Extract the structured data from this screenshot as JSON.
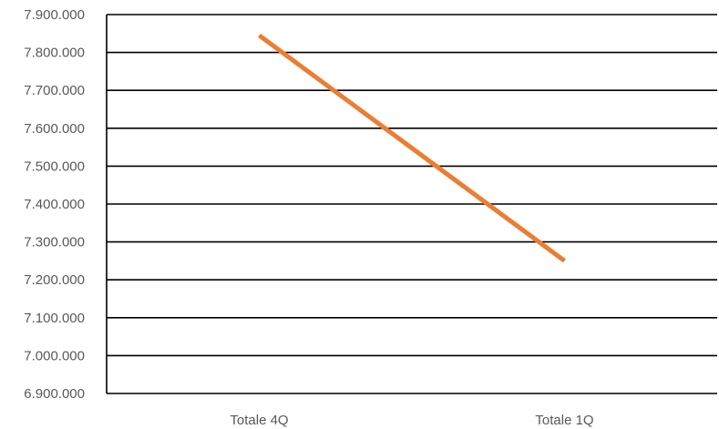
{
  "chart_data": {
    "type": "line",
    "title": "",
    "xlabel": "",
    "ylabel": "",
    "categories": [
      "Totale 4Q",
      "Totale 1Q"
    ],
    "series": [
      {
        "values": [
          7845000,
          7250000
        ],
        "color": "#ED7D31"
      }
    ],
    "ylim": [
      6900000,
      7900000
    ],
    "y_ticks": [
      {
        "value": 7900000,
        "label": "7.900.000"
      },
      {
        "value": 7800000,
        "label": "7.800.000"
      },
      {
        "value": 7700000,
        "label": "7.700.000"
      },
      {
        "value": 7600000,
        "label": "7.600.000"
      },
      {
        "value": 7500000,
        "label": "7.500.000"
      },
      {
        "value": 7400000,
        "label": "7.400.000"
      },
      {
        "value": 7300000,
        "label": "7.300.000"
      },
      {
        "value": 7200000,
        "label": "7.200.000"
      },
      {
        "value": 7100000,
        "label": "7.100.000"
      },
      {
        "value": 7000000,
        "label": "7.000.000"
      },
      {
        "value": 6900000,
        "label": "6.900.000"
      }
    ],
    "grid": true,
    "legend": "none"
  }
}
